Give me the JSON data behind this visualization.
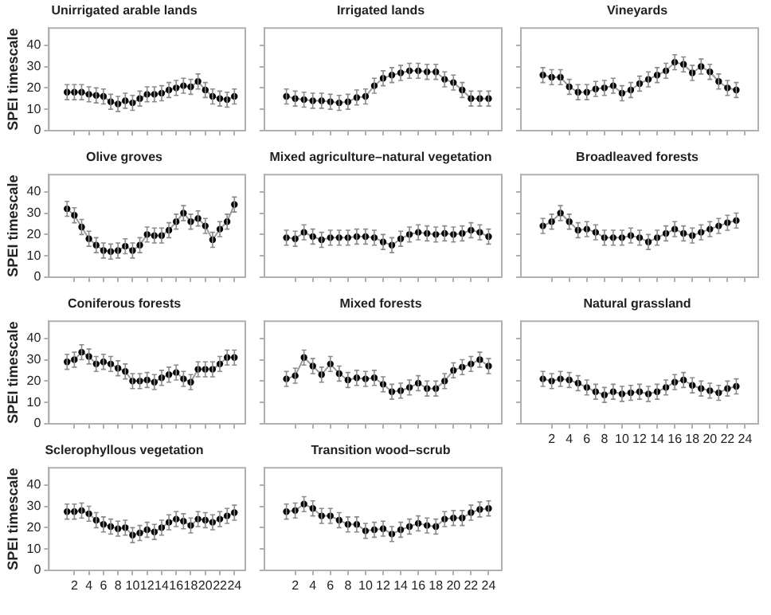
{
  "chart_data": [
    {
      "type": "line",
      "title": "Unirrigated arable lands",
      "ylabel": "SPEI timescale",
      "x": [
        1,
        2,
        3,
        4,
        5,
        6,
        7,
        8,
        9,
        10,
        11,
        12,
        13,
        14,
        15,
        16,
        17,
        18,
        19,
        20,
        21,
        22,
        23,
        24
      ],
      "values": [
        18,
        18,
        18,
        17,
        16.5,
        16,
        13.5,
        12.5,
        14,
        13,
        15,
        17,
        17,
        17.5,
        19,
        20,
        21,
        20.5,
        23,
        19,
        16,
        15,
        14.5,
        16
      ],
      "errors": [
        3.5,
        3.5,
        3.5,
        3.5,
        3.5,
        3.5,
        3.5,
        3.5,
        3.5,
        3.5,
        3.5,
        3.5,
        3.5,
        3.5,
        3.5,
        3.5,
        3.5,
        3.5,
        3.5,
        3.5,
        3.5,
        3.5,
        3.5,
        3.5
      ],
      "color": "#000000",
      "marker": "circle",
      "xlim": [
        -1.5,
        25.5
      ],
      "xticks": [
        2,
        4,
        6,
        8,
        10,
        12,
        14,
        16,
        18,
        20,
        22,
        24
      ],
      "ylim": [
        0,
        48
      ],
      "yticks": [
        0,
        10,
        20,
        30,
        40
      ],
      "tick_labels": "y"
    },
    {
      "type": "line",
      "title": "Irrigated lands",
      "x": [
        1,
        2,
        3,
        4,
        5,
        6,
        7,
        8,
        9,
        10,
        11,
        12,
        13,
        14,
        15,
        16,
        17,
        18,
        19,
        20,
        21,
        22,
        23,
        24
      ],
      "values": [
        16,
        15,
        14.5,
        14,
        14,
        13.5,
        13,
        13.5,
        15.5,
        16,
        21,
        24.5,
        26,
        27,
        28,
        28,
        27.5,
        27.5,
        24,
        22.5,
        19,
        15,
        15,
        15
      ],
      "errors": [
        3.5,
        3.5,
        3.5,
        3.5,
        3.5,
        3.5,
        3.5,
        3.5,
        3.5,
        3.5,
        3.5,
        3.5,
        3.5,
        3.5,
        3.5,
        3.5,
        3.5,
        3.5,
        3.5,
        3.5,
        3.5,
        3.5,
        3.5,
        3.5
      ],
      "color": "#000000",
      "marker": "circle",
      "xlim": [
        -1.5,
        25.5
      ],
      "xticks": [
        2,
        4,
        6,
        8,
        10,
        12,
        14,
        16,
        18,
        20,
        22,
        24
      ],
      "ylim": [
        0,
        48
      ],
      "yticks": [
        0,
        10,
        20,
        30,
        40
      ],
      "tick_labels": false
    },
    {
      "type": "line",
      "title": "Vineyards",
      "x": [
        1,
        2,
        3,
        4,
        5,
        6,
        7,
        8,
        9,
        10,
        11,
        12,
        13,
        14,
        15,
        16,
        17,
        18,
        19,
        20,
        21,
        22,
        23
      ],
      "values": [
        26,
        25,
        25,
        20.5,
        18,
        18,
        19.5,
        20,
        21,
        17.5,
        19,
        22,
        24,
        26,
        28,
        32,
        31,
        27,
        30,
        27.5,
        23,
        20,
        19
      ],
      "errors": [
        3.5,
        3.5,
        3.5,
        3.5,
        3.5,
        3.5,
        3.5,
        3.5,
        3.5,
        3.5,
        3.5,
        3.5,
        3.5,
        3.5,
        3.5,
        3.5,
        3.5,
        3.5,
        3.5,
        3.5,
        3.5,
        3.5,
        3.5
      ],
      "color": "#000000",
      "marker": "circle",
      "xlim": [
        -1.5,
        25.5
      ],
      "xticks": [
        2,
        4,
        6,
        8,
        10,
        12,
        14,
        16,
        18,
        20,
        22,
        24
      ],
      "ylim": [
        0,
        48
      ],
      "yticks": [
        0,
        10,
        20,
        30,
        40
      ],
      "tick_labels": false
    },
    {
      "type": "line",
      "title": "Olive groves",
      "ylabel": "SPEI timescale",
      "x": [
        1,
        2,
        3,
        4,
        5,
        6,
        7,
        8,
        9,
        10,
        11,
        12,
        13,
        14,
        15,
        16,
        17,
        18,
        19,
        20,
        21,
        22,
        23,
        24
      ],
      "values": [
        32,
        29,
        23.5,
        18,
        15,
        12.5,
        12,
        12.5,
        14.5,
        12.5,
        15,
        20,
        19.5,
        19.5,
        22,
        26,
        30,
        26,
        27.5,
        24,
        17.5,
        22.5,
        26,
        34
      ],
      "errors": [
        3.5,
        3.5,
        3.5,
        3.5,
        3.5,
        3.5,
        3.5,
        3.5,
        3.5,
        3.5,
        3.5,
        3.5,
        3.5,
        3.5,
        3.5,
        3.5,
        3.5,
        3.5,
        3.5,
        3.5,
        3.5,
        3.5,
        3.5,
        3.5
      ],
      "color": "#000000",
      "marker": "circle",
      "xlim": [
        -1.5,
        25.5
      ],
      "xticks": [
        2,
        4,
        6,
        8,
        10,
        12,
        14,
        16,
        18,
        20,
        22,
        24
      ],
      "ylim": [
        0,
        48
      ],
      "yticks": [
        0,
        10,
        20,
        30,
        40
      ],
      "tick_labels": "y"
    },
    {
      "type": "line",
      "title": "Mixed agriculture–natural vegetation",
      "x": [
        1,
        2,
        3,
        4,
        5,
        6,
        7,
        8,
        9,
        10,
        11,
        12,
        13,
        14,
        15,
        16,
        17,
        18,
        19,
        20,
        21,
        22,
        23,
        24
      ],
      "values": [
        18.5,
        18,
        21,
        19,
        17.5,
        18.5,
        18.5,
        18.5,
        19,
        19,
        18.5,
        16.5,
        15,
        18,
        20,
        21,
        20.5,
        20,
        20.5,
        20,
        20.5,
        22,
        21,
        19
      ],
      "errors": [
        3.5,
        3.5,
        3.5,
        3.5,
        3.5,
        3.5,
        3.5,
        3.5,
        3.5,
        3.5,
        3.5,
        3.5,
        3.5,
        3.5,
        3.5,
        3.5,
        3.5,
        3.5,
        3.5,
        3.5,
        3.5,
        3.5,
        3.5,
        3.5
      ],
      "color": "#000000",
      "marker": "circle",
      "xlim": [
        -1.5,
        25.5
      ],
      "xticks": [
        2,
        4,
        6,
        8,
        10,
        12,
        14,
        16,
        18,
        20,
        22,
        24
      ],
      "ylim": [
        0,
        48
      ],
      "yticks": [
        0,
        10,
        20,
        30,
        40
      ],
      "tick_labels": false
    },
    {
      "type": "line",
      "title": "Broadleaved forests",
      "x": [
        1,
        2,
        3,
        4,
        5,
        6,
        7,
        8,
        9,
        10,
        11,
        12,
        13,
        14,
        15,
        16,
        17,
        18,
        19,
        20,
        21,
        22,
        23
      ],
      "values": [
        24,
        26,
        30,
        26,
        22,
        22.5,
        21,
        18.5,
        18.5,
        18.5,
        19.5,
        18.5,
        16.5,
        18.5,
        20.5,
        22.5,
        20.5,
        19.5,
        21,
        22.5,
        24,
        25.5,
        26.5
      ],
      "errors": [
        3.5,
        3.5,
        3.5,
        3.5,
        3.5,
        3.5,
        3.5,
        3.5,
        3.5,
        3.5,
        3.5,
        3.5,
        3.5,
        3.5,
        3.5,
        3.5,
        3.5,
        3.5,
        3.5,
        3.5,
        3.5,
        3.5,
        3.5
      ],
      "color": "#000000",
      "marker": "circle",
      "xlim": [
        -1.5,
        25.5
      ],
      "xticks": [
        2,
        4,
        6,
        8,
        10,
        12,
        14,
        16,
        18,
        20,
        22,
        24
      ],
      "ylim": [
        0,
        48
      ],
      "yticks": [
        0,
        10,
        20,
        30,
        40
      ],
      "tick_labels": false
    },
    {
      "type": "line",
      "title": "Coniferous forests",
      "ylabel": "SPEI timescale",
      "x": [
        1,
        2,
        3,
        4,
        5,
        6,
        7,
        8,
        9,
        10,
        11,
        12,
        13,
        14,
        15,
        16,
        17,
        18,
        19,
        20,
        21,
        22,
        23,
        24
      ],
      "values": [
        29,
        30,
        33.5,
        31.5,
        28,
        29,
        28,
        26,
        24.5,
        20,
        20,
        20.5,
        19.5,
        21.5,
        23,
        24,
        21,
        19.5,
        25.5,
        25.5,
        25.5,
        28,
        31,
        31
      ],
      "errors": [
        3.5,
        3.5,
        3.5,
        3.5,
        3.5,
        3.5,
        3.5,
        3.5,
        3.5,
        3.5,
        3.5,
        3.5,
        3.5,
        3.5,
        3.5,
        3.5,
        3.5,
        3.5,
        3.5,
        3.5,
        3.5,
        3.5,
        3.5,
        3.5
      ],
      "color": "#000000",
      "marker": "circle",
      "xlim": [
        -1.5,
        25.5
      ],
      "xticks": [
        2,
        4,
        6,
        8,
        10,
        12,
        14,
        16,
        18,
        20,
        22,
        24
      ],
      "ylim": [
        0,
        48
      ],
      "yticks": [
        0,
        10,
        20,
        30,
        40
      ],
      "tick_labels": "y"
    },
    {
      "type": "line",
      "title": "Mixed forests",
      "x": [
        1,
        2,
        3,
        4,
        5,
        6,
        7,
        8,
        9,
        10,
        11,
        12,
        13,
        14,
        15,
        16,
        17,
        18,
        19,
        20,
        21,
        22,
        23,
        24
      ],
      "values": [
        21,
        22.5,
        31,
        27,
        23,
        28,
        23.5,
        20.5,
        21.5,
        21,
        21.5,
        18.5,
        15,
        15.5,
        17,
        19,
        16.5,
        16.5,
        20,
        25,
        26.5,
        28,
        30,
        27
      ],
      "errors": [
        3.5,
        3.5,
        3.5,
        3.5,
        3.5,
        3.5,
        3.5,
        3.5,
        3.5,
        3.5,
        3.5,
        3.5,
        3.5,
        3.5,
        3.5,
        3.5,
        3.5,
        3.5,
        3.5,
        3.5,
        3.5,
        3.5,
        3.5,
        3.5
      ],
      "color": "#000000",
      "marker": "circle",
      "xlim": [
        -1.5,
        25.5
      ],
      "xticks": [
        2,
        4,
        6,
        8,
        10,
        12,
        14,
        16,
        18,
        20,
        22,
        24
      ],
      "ylim": [
        0,
        48
      ],
      "yticks": [
        0,
        10,
        20,
        30,
        40
      ],
      "tick_labels": false
    },
    {
      "type": "line",
      "title": "Natural grassland",
      "x": [
        1,
        2,
        3,
        4,
        5,
        6,
        7,
        8,
        9,
        10,
        11,
        12,
        13,
        14,
        15,
        16,
        17,
        18,
        19,
        20,
        21,
        22,
        23
      ],
      "values": [
        21,
        20,
        21,
        20.5,
        19,
        17,
        15,
        13.5,
        15,
        14,
        14.5,
        15,
        14,
        15,
        17,
        19.5,
        20.5,
        18,
        16.5,
        15.5,
        14.5,
        16.5,
        17.5
      ],
      "errors": [
        3.5,
        3.5,
        3.5,
        3.5,
        3.5,
        3.5,
        3.5,
        3.5,
        3.5,
        3.5,
        3.5,
        3.5,
        3.5,
        3.5,
        3.5,
        3.5,
        3.5,
        3.5,
        3.5,
        3.5,
        3.5,
        3.5,
        3.5
      ],
      "color": "#000000",
      "marker": "circle",
      "xlim": [
        -1.5,
        25.5
      ],
      "xticks": [
        2,
        4,
        6,
        8,
        10,
        12,
        14,
        16,
        18,
        20,
        22,
        24
      ],
      "ylim": [
        0,
        48
      ],
      "yticks": [
        0,
        10,
        20,
        30,
        40
      ],
      "tick_labels": "x"
    },
    {
      "type": "line",
      "title": "Sclerophyllous vegetation",
      "ylabel": "SPEI timescale",
      "x": [
        1,
        2,
        3,
        4,
        5,
        6,
        7,
        8,
        9,
        10,
        11,
        12,
        13,
        14,
        15,
        16,
        17,
        18,
        19,
        20,
        21,
        22,
        23,
        24
      ],
      "values": [
        27.5,
        27.5,
        28,
        26.5,
        23.5,
        21.5,
        20.5,
        19.5,
        20,
        16.5,
        17.5,
        19,
        18,
        20,
        22.5,
        24,
        23,
        21,
        24,
        23.5,
        22.5,
        24,
        25.5,
        27
      ],
      "errors": [
        3.5,
        3.5,
        3.5,
        3.5,
        3.5,
        3.5,
        3.5,
        3.5,
        3.5,
        3.5,
        3.5,
        3.5,
        3.5,
        3.5,
        3.5,
        3.5,
        3.5,
        3.5,
        3.5,
        3.5,
        3.5,
        3.5,
        3.5,
        3.5
      ],
      "color": "#000000",
      "marker": "circle",
      "xlim": [
        -1.5,
        25.5
      ],
      "xticks": [
        2,
        4,
        6,
        8,
        10,
        12,
        14,
        16,
        18,
        20,
        22,
        24
      ],
      "ylim": [
        0,
        48
      ],
      "yticks": [
        0,
        10,
        20,
        30,
        40
      ]
    },
    {
      "type": "line",
      "title": "Transition wood–scrub",
      "x": [
        1,
        2,
        3,
        4,
        5,
        6,
        7,
        8,
        9,
        10,
        11,
        12,
        13,
        14,
        15,
        16,
        17,
        18,
        19,
        20,
        21,
        22,
        23,
        24
      ],
      "values": [
        27.5,
        28,
        31,
        29,
        25.5,
        25.5,
        23.5,
        21.5,
        21.5,
        18.5,
        19,
        19.5,
        17,
        19,
        20.5,
        22,
        21,
        20.5,
        24,
        24.5,
        24.5,
        27,
        28.5,
        29
      ],
      "errors": [
        3.5,
        3.5,
        3.5,
        3.5,
        3.5,
        3.5,
        3.5,
        3.5,
        3.5,
        3.5,
        3.5,
        3.5,
        3.5,
        3.5,
        3.5,
        3.5,
        3.5,
        3.5,
        3.5,
        3.5,
        3.5,
        3.5,
        3.5,
        3.5
      ],
      "color": "#000000",
      "marker": "circle",
      "xlim": [
        -1.5,
        25.5
      ],
      "xticks": [
        2,
        4,
        6,
        8,
        10,
        12,
        14,
        16,
        18,
        20,
        22,
        24
      ],
      "ylim": [
        0,
        48
      ],
      "yticks": [
        0,
        10,
        20,
        30,
        40
      ],
      "tick_labels": "x"
    }
  ]
}
